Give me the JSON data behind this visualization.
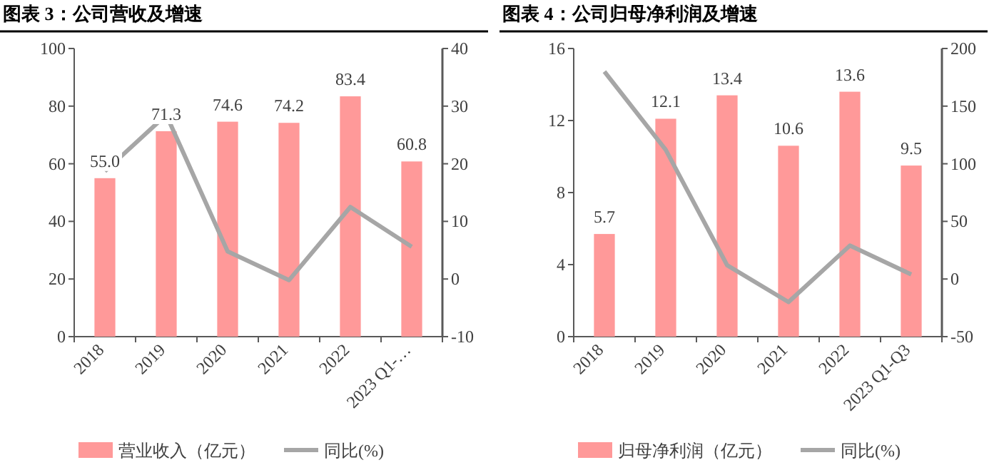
{
  "chart_data": [
    {
      "type": "bar",
      "title": "图表 3：公司营收及增速",
      "categories": [
        "2018",
        "2019",
        "2020",
        "2021",
        "2022",
        "2023 Q1-…"
      ],
      "ylim": [
        0,
        100
      ],
      "yticks": [
        0,
        20,
        40,
        60,
        80,
        100
      ],
      "y2lim": [
        -10,
        40
      ],
      "y2ticks": [
        -10,
        0,
        10,
        20,
        30,
        40
      ],
      "legend": "bottom",
      "grid": false,
      "series": [
        {
          "name": "营业收入（亿元）",
          "color": "#ff9999",
          "values": [
            55.0,
            71.3,
            74.6,
            74.2,
            83.4,
            60.8
          ],
          "value_labels": [
            "55.0",
            "71.3",
            "74.6",
            "74.2",
            "83.4",
            "60.8"
          ]
        },
        {
          "name": "同比(%)",
          "type": "line",
          "axis": "y2",
          "color": "#a6a6a6",
          "values": [
            18.7,
            28.5,
            4.8,
            -0.2,
            12.5,
            5.6
          ]
        }
      ]
    },
    {
      "type": "bar",
      "title": "图表 4：公司归母净利润及增速",
      "categories": [
        "2018",
        "2019",
        "2020",
        "2021",
        "2022",
        "2023 Q1-Q3"
      ],
      "ylim": [
        0,
        16
      ],
      "yticks": [
        0,
        4,
        8,
        12,
        16
      ],
      "y2lim": [
        -50,
        200
      ],
      "y2ticks": [
        -50,
        0,
        50,
        100,
        150,
        200
      ],
      "legend": "bottom",
      "grid": false,
      "series": [
        {
          "name": "归母净利润（亿元）",
          "color": "#ff9999",
          "values": [
            5.7,
            12.1,
            13.4,
            10.6,
            13.6,
            9.5
          ],
          "value_labels": [
            "5.7",
            "12.1",
            "13.4",
            "10.6",
            "13.6",
            "9.5"
          ]
        },
        {
          "name": "同比(%)",
          "type": "line",
          "axis": "y2",
          "color": "#a6a6a6",
          "values": [
            180,
            112,
            12,
            -20,
            29,
            4
          ]
        }
      ]
    }
  ]
}
